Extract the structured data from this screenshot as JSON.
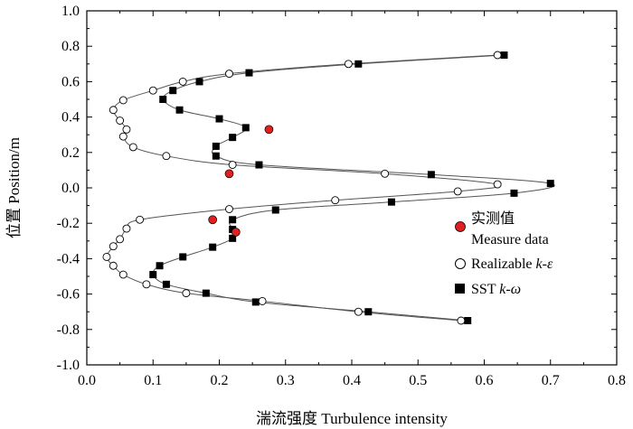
{
  "chart_data": {
    "type": "scatter",
    "xlabel": "湍流强度 Turbulence intensity",
    "ylabel": "位置 Position/m",
    "xlim": [
      0.0,
      0.8
    ],
    "ylim": [
      -1.0,
      1.0
    ],
    "xticks": [
      "0.0",
      "0.1",
      "0.2",
      "0.3",
      "0.4",
      "0.5",
      "0.6",
      "0.7",
      "0.8"
    ],
    "yticks": [
      "1.0",
      "0.8",
      "0.6",
      "0.4",
      "0.2",
      "0.0",
      "-0.2",
      "-0.4",
      "-0.6",
      "-0.8",
      "-1.0"
    ],
    "legend": {
      "position": "right",
      "items": [
        {
          "label_line1": "实测值",
          "label_line2": "Measure data",
          "marker": "red-circle"
        },
        {
          "label_prefix": "Realizable ",
          "label_italic": "k-ε",
          "marker": "open-circle"
        },
        {
          "label_prefix": "SST ",
          "label_italic": "k-ω",
          "marker": "black-square"
        }
      ]
    },
    "colors": {
      "measure": "#e02020",
      "realizable_fill": "#ffffff",
      "sst": "#000000",
      "line": "#555555"
    },
    "series": [
      {
        "name": "Measure data",
        "points": [
          [
            0.275,
            0.33
          ],
          [
            0.215,
            0.08
          ],
          [
            0.19,
            -0.18
          ],
          [
            0.225,
            -0.25
          ]
        ]
      },
      {
        "name": "Realizable k-ε",
        "points": [
          [
            0.62,
            0.75
          ],
          [
            0.395,
            0.7
          ],
          [
            0.215,
            0.645
          ],
          [
            0.145,
            0.6
          ],
          [
            0.1,
            0.55
          ],
          [
            0.055,
            0.495
          ],
          [
            0.04,
            0.44
          ],
          [
            0.05,
            0.38
          ],
          [
            0.06,
            0.33
          ],
          [
            0.055,
            0.29
          ],
          [
            0.07,
            0.23
          ],
          [
            0.12,
            0.18
          ],
          [
            0.22,
            0.13
          ],
          [
            0.45,
            0.08
          ],
          [
            0.62,
            0.02
          ],
          [
            0.56,
            -0.02
          ],
          [
            0.375,
            -0.07
          ],
          [
            0.215,
            -0.12
          ],
          [
            0.08,
            -0.18
          ],
          [
            0.06,
            -0.23
          ],
          [
            0.05,
            -0.29
          ],
          [
            0.04,
            -0.33
          ],
          [
            0.03,
            -0.39
          ],
          [
            0.04,
            -0.44
          ],
          [
            0.055,
            -0.49
          ],
          [
            0.09,
            -0.545
          ],
          [
            0.15,
            -0.595
          ],
          [
            0.265,
            -0.64
          ],
          [
            0.41,
            -0.7
          ],
          [
            0.565,
            -0.75
          ]
        ]
      },
      {
        "name": "SST k-ω",
        "points": [
          [
            0.63,
            0.75
          ],
          [
            0.41,
            0.7
          ],
          [
            0.245,
            0.65
          ],
          [
            0.17,
            0.6
          ],
          [
            0.13,
            0.55
          ],
          [
            0.115,
            0.5
          ],
          [
            0.14,
            0.44
          ],
          [
            0.2,
            0.39
          ],
          [
            0.24,
            0.34
          ],
          [
            0.22,
            0.285
          ],
          [
            0.195,
            0.235
          ],
          [
            0.195,
            0.18
          ],
          [
            0.26,
            0.13
          ],
          [
            0.52,
            0.075
          ],
          [
            0.7,
            0.025
          ],
          [
            0.645,
            -0.03
          ],
          [
            0.46,
            -0.08
          ],
          [
            0.285,
            -0.125
          ],
          [
            0.22,
            -0.18
          ],
          [
            0.22,
            -0.235
          ],
          [
            0.22,
            -0.285
          ],
          [
            0.19,
            -0.335
          ],
          [
            0.145,
            -0.39
          ],
          [
            0.11,
            -0.44
          ],
          [
            0.1,
            -0.49
          ],
          [
            0.12,
            -0.545
          ],
          [
            0.18,
            -0.595
          ],
          [
            0.255,
            -0.645
          ],
          [
            0.425,
            -0.7
          ],
          [
            0.575,
            -0.75
          ]
        ]
      }
    ]
  }
}
